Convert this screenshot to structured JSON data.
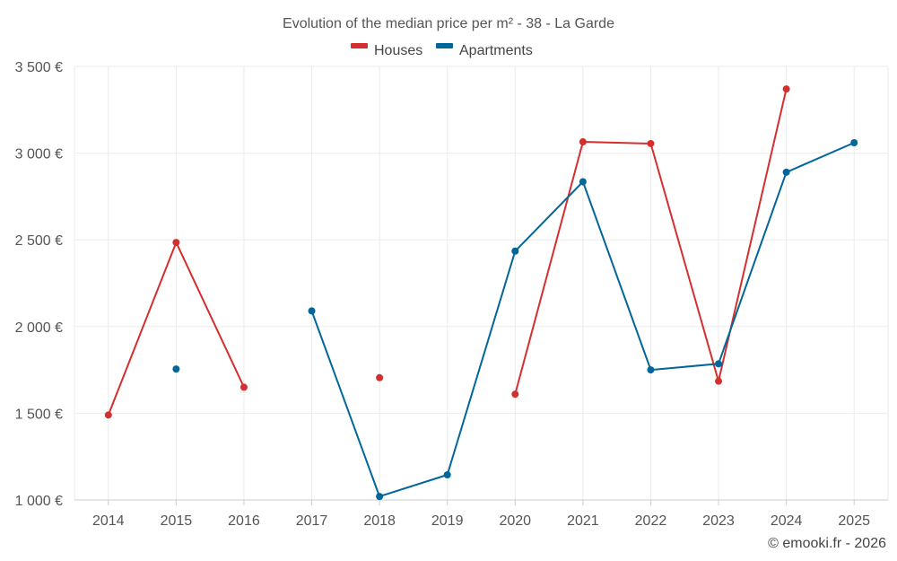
{
  "chart_data": {
    "type": "line",
    "title": "Evolution of the median price per m² - 38 - La Garde",
    "categories": [
      "2014",
      "2015",
      "2016",
      "2017",
      "2018",
      "2019",
      "2020",
      "2021",
      "2022",
      "2023",
      "2024",
      "2025"
    ],
    "series": [
      {
        "name": "Houses",
        "color": "#d32f2f",
        "values": [
          1490,
          2485,
          1650,
          null,
          1705,
          null,
          1610,
          3065,
          3055,
          1685,
          3370,
          null
        ]
      },
      {
        "name": "Apartments",
        "color": "#016699",
        "values": [
          null,
          1755,
          null,
          2090,
          1020,
          1145,
          2435,
          2835,
          1750,
          1785,
          2890,
          3060
        ]
      }
    ],
    "y_ticks": [
      "1 000 €",
      "1 500 €",
      "2 000 €",
      "2 500 €",
      "3 000 €",
      "3 500 €"
    ],
    "y_tick_values": [
      1000,
      1500,
      2000,
      2500,
      3000,
      3500
    ],
    "ylim": [
      1000,
      3500
    ],
    "grid": true,
    "legend_position": "top-center",
    "xlabel": "",
    "ylabel": ""
  },
  "credit": "© emooki.fr - 2026"
}
